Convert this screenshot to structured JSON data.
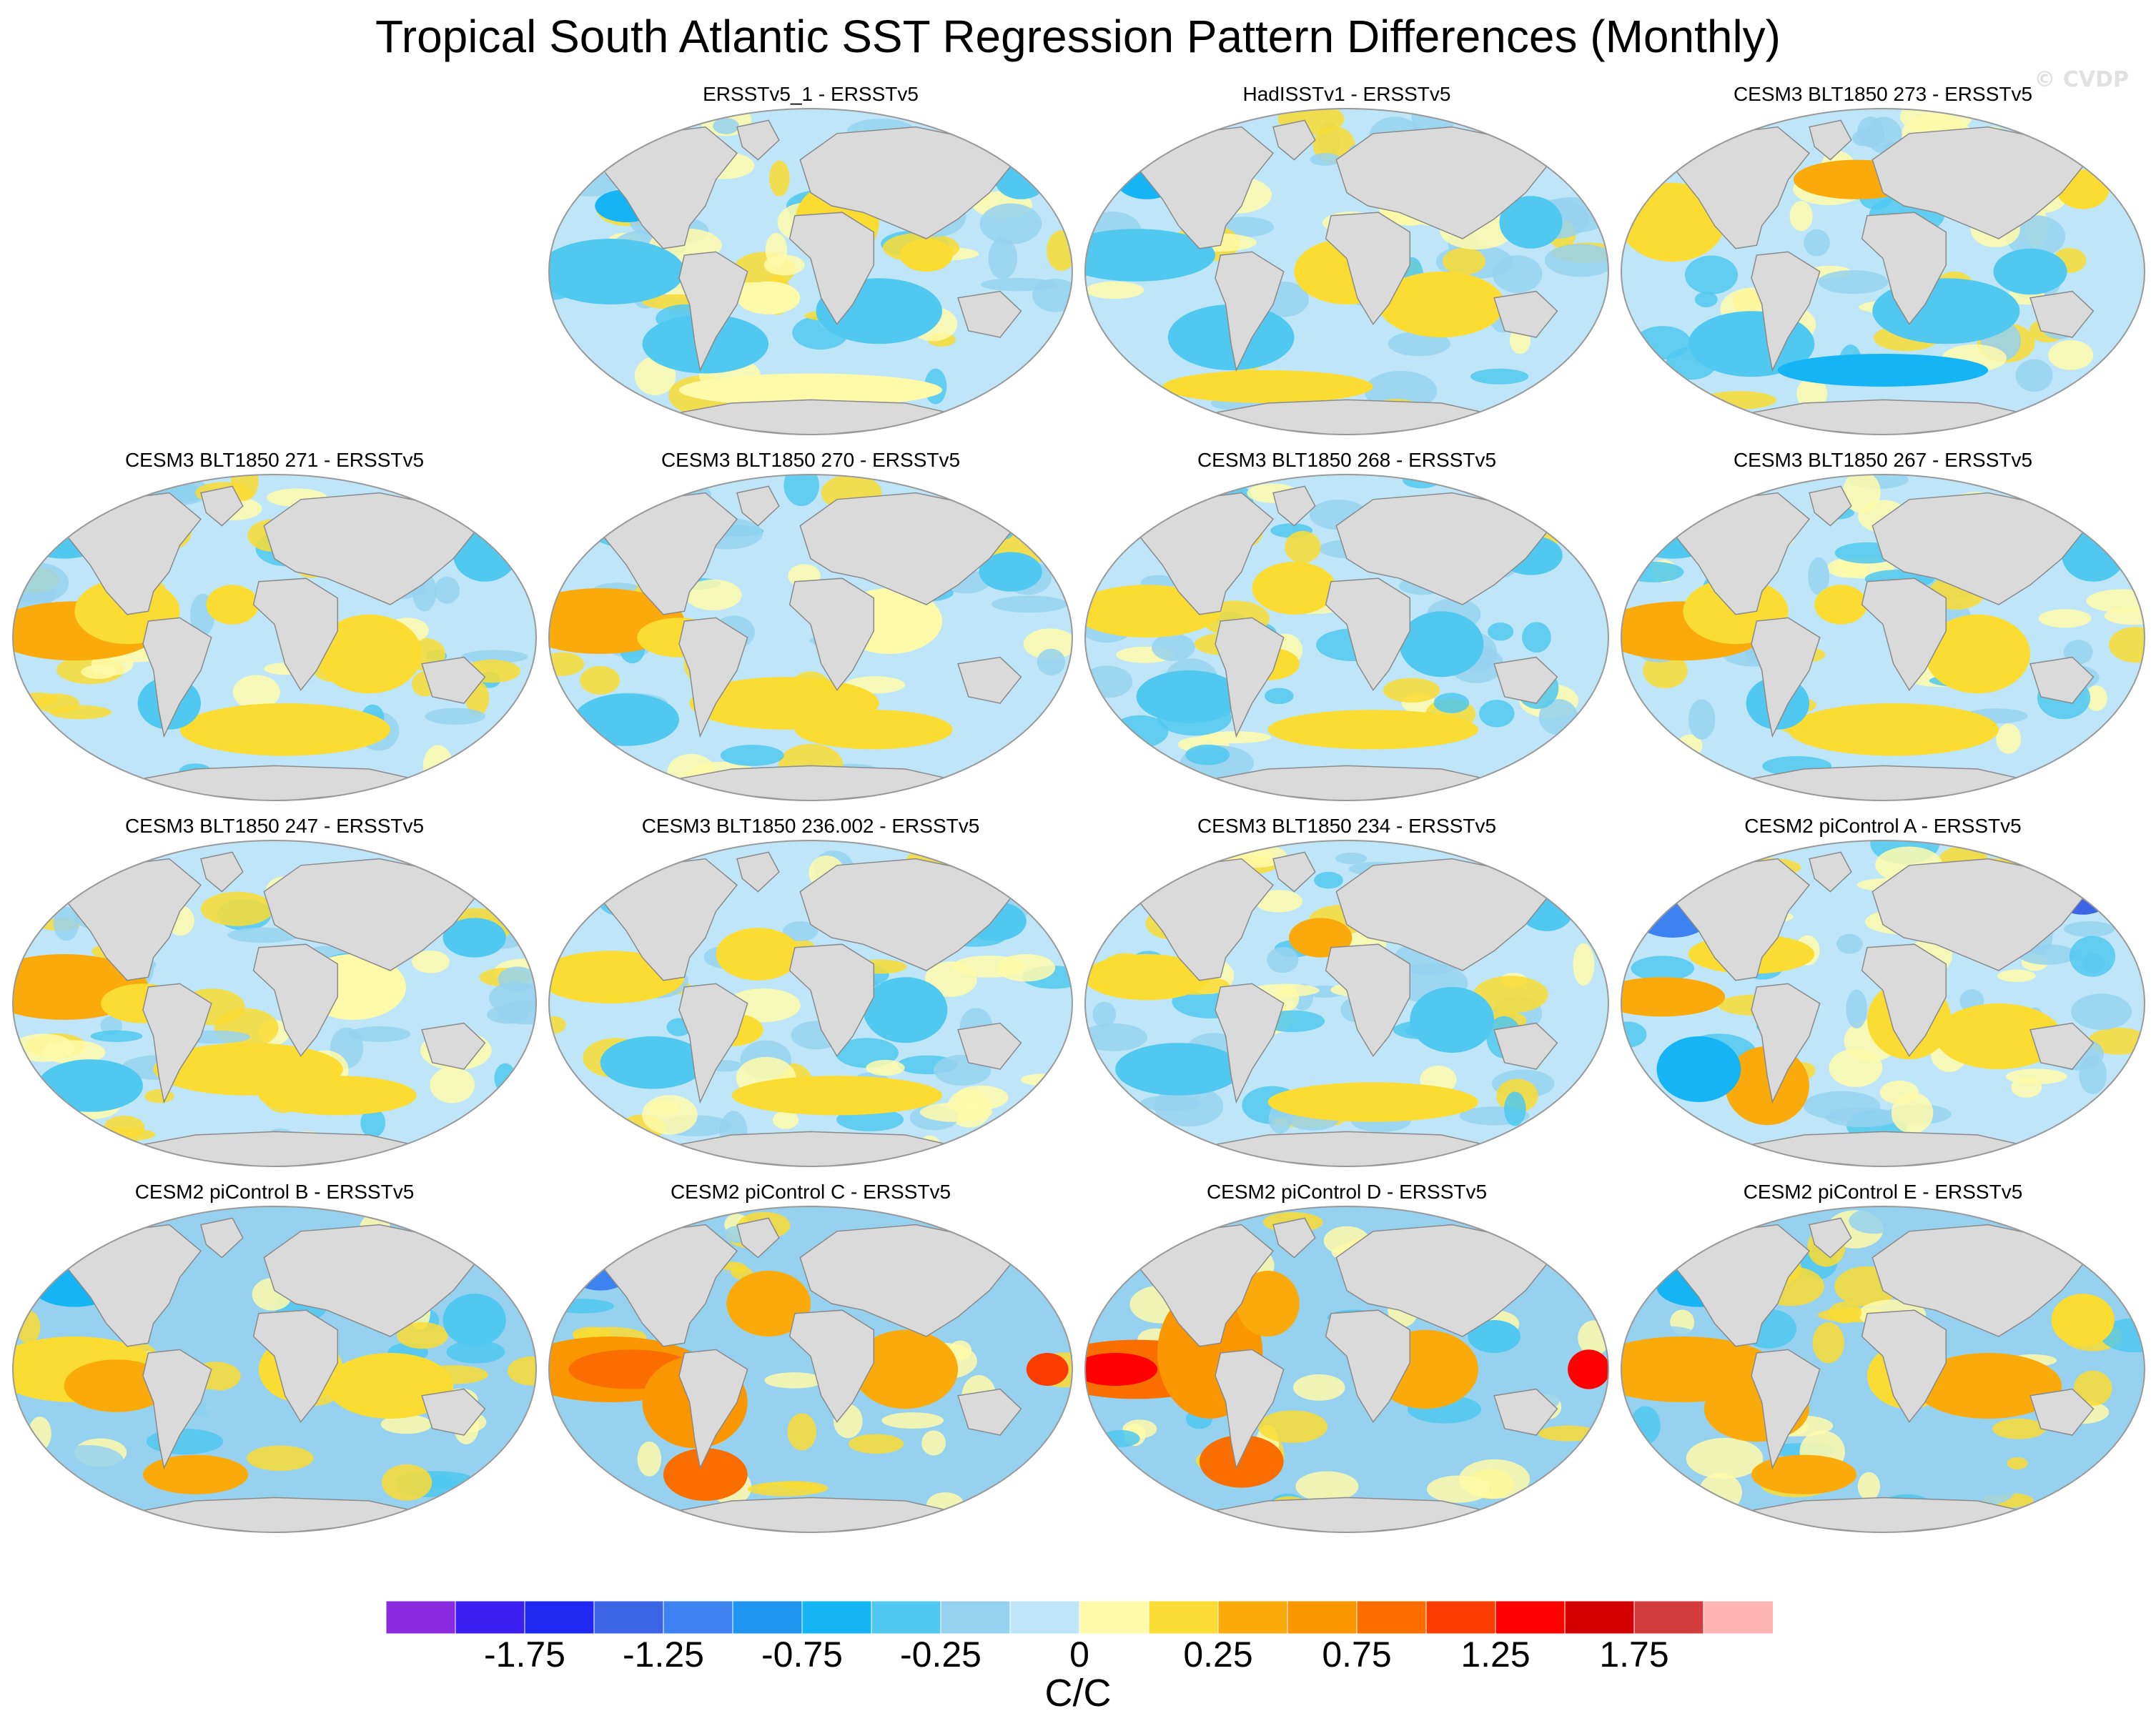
{
  "title": "Tropical South Atlantic SST Regression Pattern Differences (Monthly)",
  "watermark": "© CVDP",
  "colors": {
    "land": "#dadada",
    "coast": "#8a8a8a",
    "bins": [
      "#8a2be2",
      "#3c1ef0",
      "#1e28f0",
      "#3c64e6",
      "#3c82f0",
      "#1e96f0",
      "#14b4f5",
      "#50c8f0",
      "#96d2f0",
      "#bee6f8",
      "#fffaaa",
      "#fadc32",
      "#faaa0a",
      "#fa9600",
      "#fa6e00",
      "#fa3c00",
      "#ff0000",
      "#d20000",
      "#d23c3c",
      "#ffb4b4"
    ]
  },
  "panels": [
    {
      "title": "ERSSTv5_1 - ERSSTv5",
      "kind": "obs1"
    },
    {
      "title": "HadISSTv1 - ERSSTv5",
      "kind": "obs2"
    },
    {
      "title": "CESM3 BLT1850 273 - ERSSTv5",
      "kind": "warmN"
    },
    {
      "title": "CESM3 BLT1850 271 - ERSSTv5",
      "kind": "model1"
    },
    {
      "title": "CESM3 BLT1850 270 - ERSSTv5",
      "kind": "model2"
    },
    {
      "title": "CESM3 BLT1850 268 - ERSSTv5",
      "kind": "model3"
    },
    {
      "title": "CESM3 BLT1850 267 - ERSSTv5",
      "kind": "model1"
    },
    {
      "title": "CESM3 BLT1850 247 - ERSSTv5",
      "kind": "model2"
    },
    {
      "title": "CESM3 BLT1850 236.002 - ERSSTv5",
      "kind": "model3"
    },
    {
      "title": "CESM3 BLT1850 234 - ERSSTv5",
      "kind": "model4"
    },
    {
      "title": "CESM2 piControl A - ERSSTv5",
      "kind": "cesm2a"
    },
    {
      "title": "CESM2 piControl B - ERSSTv5",
      "kind": "cesm2b"
    },
    {
      "title": "CESM2 piControl C - ERSSTv5",
      "kind": "cesm2c"
    },
    {
      "title": "CESM2 piControl D - ERSSTv5",
      "kind": "cesm2d"
    },
    {
      "title": "CESM2 piControl E - ERSSTv5",
      "kind": "cesm2e"
    }
  ],
  "colorbar": {
    "levels": [
      -2.0,
      -1.75,
      -1.5,
      -1.25,
      -1.0,
      -0.75,
      -0.5,
      -0.25,
      -0.1,
      0,
      0.1,
      0.25,
      0.5,
      0.75,
      1.0,
      1.25,
      1.5,
      1.75,
      2.0
    ],
    "labels": [
      "-1.75",
      "-1.25",
      "-0.75",
      "-0.25",
      "0",
      "0.25",
      "0.75",
      "1.25",
      "1.75"
    ],
    "units": "C/C"
  }
}
